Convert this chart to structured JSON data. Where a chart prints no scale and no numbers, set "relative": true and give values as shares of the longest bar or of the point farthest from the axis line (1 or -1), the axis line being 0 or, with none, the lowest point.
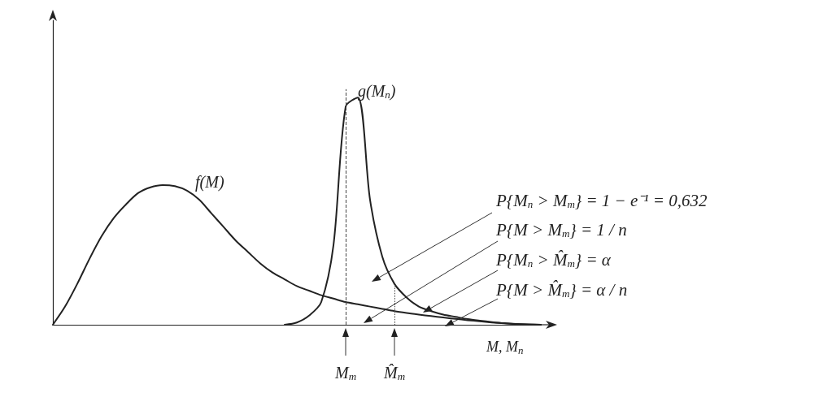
{
  "chart_data": {
    "type": "line",
    "relative": true,
    "marker": "none",
    "line_style": "solid",
    "xlabel": "M, M$_{n}$",
    "categories": [
      null,
      null,
      null,
      null,
      null,
      null,
      null,
      null,
      null,
      null,
      null,
      null,
      null,
      null,
      null,
      null,
      null,
      null,
      null,
      null,
      null,
      null,
      null,
      null,
      "M$_{m}$",
      null,
      null,
      null,
      "M̂$_{m}$",
      null,
      null,
      null,
      null,
      null,
      null,
      null,
      null,
      null,
      null,
      null,
      null
    ],
    "series": [
      {
        "name": "f(M)",
        "color": "#222222",
        "values": [
          0,
          0.08,
          0.18,
          0.29,
          0.39,
          0.47,
          0.53,
          0.58,
          0.605,
          0.615,
          0.61,
          0.59,
          0.55,
          0.49,
          0.43,
          0.37,
          0.32,
          0.27,
          0.23,
          0.2,
          0.17,
          0.15,
          0.13,
          0.115,
          0.1,
          0.09,
          0.08,
          0.07,
          0.06,
          0.052,
          0.045,
          0.038,
          0.032,
          0.026,
          0.02,
          0.015,
          0.01,
          0.006,
          0.003,
          0.001,
          0
        ]
      },
      {
        "name": "g(M$_{n}$)",
        "color": "#222222",
        "values": [
          null,
          null,
          null,
          null,
          null,
          null,
          null,
          null,
          null,
          null,
          null,
          null,
          null,
          null,
          null,
          null,
          null,
          null,
          null,
          0,
          0.01,
          0.04,
          0.1,
          0.35,
          0.96,
          1,
          0.55,
          0.3,
          0.18,
          0.12,
          0.08,
          0.06,
          0.045,
          0.035,
          0.025,
          0.018,
          0.012,
          0.007,
          0.004,
          0.002,
          0
        ]
      }
    ],
    "ref_lines": [
      {
        "axis": "x",
        "value": "M$_{m}$",
        "line_style": "dashed"
      },
      {
        "axis": "x",
        "value": "M̂$_{m}$",
        "line_style": "dotted"
      }
    ],
    "annotations": [
      "P{M$_{n}$ > M$_{m}$} = 1 − e⁻¹ = 0,632",
      "P{M > M$_{m}$} = 1 / n",
      "P{M$_{n}$ > M̂$_{m}$} = α",
      "P{M > M̂$_{m}$} = α / n"
    ]
  }
}
